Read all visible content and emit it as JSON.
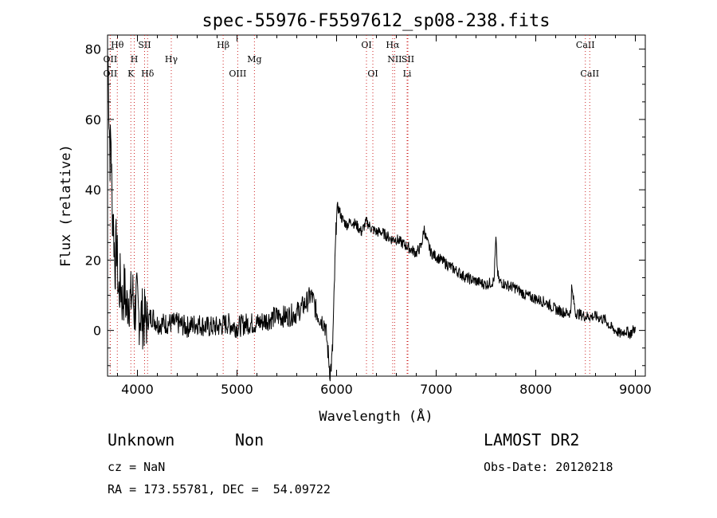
{
  "chart_data": {
    "type": "line",
    "title": "spec-55976-F5597612_sp08-238.fits",
    "xlabel": "Wavelength (Å)",
    "ylabel": "Flux (relative)",
    "xlim": [
      3700,
      9100
    ],
    "ylim": [
      -13,
      84
    ],
    "xticks": [
      4000,
      5000,
      6000,
      7000,
      8000,
      9000
    ],
    "yticks": [
      0,
      20,
      40,
      60,
      80
    ],
    "grid": false,
    "series": [
      {
        "x": [
          3705,
          3715,
          3725,
          3735,
          3745,
          3760,
          3775,
          3790,
          3810,
          3830,
          3850,
          3870,
          3890,
          3910,
          3930,
          3950,
          3970,
          3990,
          4010,
          4030,
          4060,
          4100,
          4150,
          4200,
          4300,
          4400,
          4500,
          4600,
          4700,
          4800,
          4900,
          5000,
          5100,
          5200,
          5300,
          5400,
          5500,
          5600,
          5700,
          5740,
          5760,
          5800,
          5850,
          5880,
          5900,
          5920,
          5935,
          5950,
          5960,
          5970,
          5980,
          5990,
          6000,
          6010,
          6030,
          6050,
          6100,
          6150,
          6200,
          6250,
          6300,
          6350,
          6400,
          6450,
          6500,
          6550,
          6600,
          6650,
          6700,
          6750,
          6800,
          6850,
          6880,
          6900,
          6950,
          7000,
          7100,
          7200,
          7300,
          7400,
          7500,
          7580,
          7600,
          7615,
          7630,
          7700,
          7800,
          7900,
          8000,
          8100,
          8200,
          8300,
          8350,
          8360,
          8400,
          8500,
          8600,
          8700,
          8750,
          8800,
          8850,
          8900,
          8950,
          9000
        ],
        "y": [
          78,
          62,
          50,
          55,
          36,
          30,
          18,
          25,
          10,
          14,
          8,
          12,
          6,
          10,
          8,
          11,
          5,
          9,
          4,
          5,
          3,
          3,
          4,
          2,
          2,
          2,
          1,
          2,
          1,
          1,
          2,
          1,
          2,
          2,
          3,
          4,
          4,
          5,
          8,
          10,
          9,
          5,
          3,
          2,
          -2,
          -8,
          -12,
          -9,
          -5,
          5,
          15,
          25,
          33,
          35,
          34,
          32,
          30,
          31,
          30,
          28,
          31,
          29,
          28,
          28,
          27,
          26,
          26,
          25,
          24,
          23,
          22,
          24,
          29,
          26,
          22,
          21,
          19,
          17,
          15,
          14,
          13,
          14,
          26,
          17,
          14,
          13,
          12,
          10,
          9,
          8,
          6,
          5,
          5,
          12,
          5,
          4,
          4,
          3,
          1,
          0,
          -1,
          0,
          -1,
          1
        ]
      }
    ],
    "line_markers": [
      {
        "label": "Hθ",
        "x": 3798,
        "row": 0
      },
      {
        "label": "SII",
        "x": 4072,
        "row": 0
      },
      {
        "label": "Hβ",
        "x": 4861,
        "row": 0
      },
      {
        "label": "OI",
        "x": 6300,
        "row": 0
      },
      {
        "label": "Hα",
        "x": 6563,
        "row": 0
      },
      {
        "label": "CaII",
        "x": 8498,
        "row": 0
      },
      {
        "label": "OII",
        "x": 3727,
        "row": 1
      },
      {
        "label": "H",
        "x": 3968,
        "row": 1
      },
      {
        "label": "Hγ",
        "x": 4340,
        "row": 1
      },
      {
        "label": "Mg",
        "x": 5175,
        "row": 1
      },
      {
        "label": "NII",
        "x": 6583,
        "row": 1
      },
      {
        "label": "SII",
        "x": 6716,
        "row": 1
      },
      {
        "label": "OII",
        "x": 3727,
        "row": 2
      },
      {
        "label": "K",
        "x": 3934,
        "row": 2
      },
      {
        "label": "Hδ",
        "x": 4102,
        "row": 2
      },
      {
        "label": "OIII",
        "x": 5007,
        "row": 2
      },
      {
        "label": "OI",
        "x": 6364,
        "row": 2
      },
      {
        "label": "Li",
        "x": 6708,
        "row": 2
      },
      {
        "label": "CaII",
        "x": 8542,
        "row": 2
      }
    ]
  },
  "info": {
    "class": "Unknown",
    "subclass": "Non",
    "survey": "LAMOST DR2",
    "cz": "cz = NaN",
    "obs_date": "Obs-Date: 20120218",
    "coords": "RA = 173.55781, DEC =  54.09722"
  }
}
